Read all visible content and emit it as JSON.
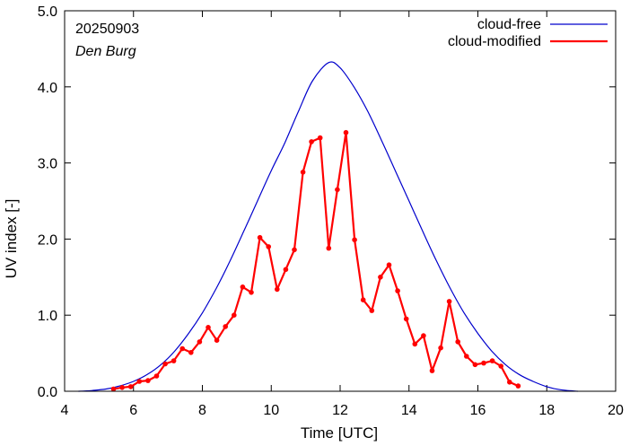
{
  "chart_data": {
    "type": "line",
    "xlabel": "Time  [UTC]",
    "ylabel": "UV index  [-]",
    "xlim": [
      4,
      20
    ],
    "ylim": [
      0,
      5
    ],
    "x_ticks": [
      "4",
      "6",
      "8",
      "10",
      "12",
      "14",
      "16",
      "18",
      "20"
    ],
    "y_ticks": [
      "0.0",
      "1.0",
      "2.0",
      "3.0",
      "4.0",
      "5.0"
    ],
    "grid": false,
    "legend_position": "top-right",
    "annotations": {
      "date": "20250903",
      "location": "Den Burg"
    },
    "series": [
      {
        "name": "cloud-free",
        "color": "#0000cc",
        "markers": false,
        "x": [
          4.4,
          4.8,
          5.2,
          5.6,
          6.0,
          6.4,
          6.8,
          7.2,
          7.6,
          8.0,
          8.4,
          8.8,
          9.2,
          9.6,
          10.0,
          10.4,
          10.8,
          11.2,
          11.67,
          12.0,
          12.4,
          12.8,
          13.2,
          13.6,
          14.0,
          14.4,
          14.8,
          15.2,
          15.6,
          16.0,
          16.4,
          16.8,
          17.2,
          17.6,
          18.0,
          18.4,
          18.9
        ],
        "y": [
          0.0,
          0.01,
          0.03,
          0.07,
          0.13,
          0.22,
          0.35,
          0.53,
          0.76,
          1.03,
          1.35,
          1.71,
          2.1,
          2.5,
          2.9,
          3.27,
          3.69,
          4.08,
          4.32,
          4.25,
          4.0,
          3.68,
          3.3,
          2.9,
          2.5,
          2.1,
          1.71,
          1.35,
          1.03,
          0.76,
          0.53,
          0.35,
          0.22,
          0.13,
          0.06,
          0.02,
          0.0
        ]
      },
      {
        "name": "cloud-modified",
        "color": "#ff0000",
        "markers": true,
        "x": [
          5.42,
          5.67,
          5.92,
          6.17,
          6.42,
          6.67,
          6.92,
          7.17,
          7.42,
          7.67,
          7.92,
          8.17,
          8.42,
          8.67,
          8.92,
          9.17,
          9.42,
          9.67,
          9.92,
          10.17,
          10.42,
          10.67,
          10.92,
          11.17,
          11.42,
          11.67,
          11.92,
          12.17,
          12.42,
          12.67,
          12.92,
          13.17,
          13.42,
          13.67,
          13.92,
          14.17,
          14.42,
          14.67,
          14.92,
          15.17,
          15.42,
          15.67,
          15.92,
          16.17,
          16.42,
          16.67,
          16.92,
          17.17
        ],
        "y": [
          0.03,
          0.05,
          0.06,
          0.13,
          0.14,
          0.2,
          0.36,
          0.4,
          0.56,
          0.51,
          0.65,
          0.84,
          0.67,
          0.85,
          1.0,
          1.37,
          1.3,
          2.02,
          1.9,
          1.34,
          1.6,
          1.86,
          2.88,
          3.28,
          3.33,
          1.88,
          2.65,
          3.4,
          1.99,
          1.2,
          1.06,
          1.5,
          1.66,
          1.32,
          0.95,
          0.62,
          0.73,
          0.27,
          0.57,
          1.18,
          0.65,
          0.46,
          0.35,
          0.37,
          0.4,
          0.33,
          0.12,
          0.07
        ]
      }
    ]
  }
}
